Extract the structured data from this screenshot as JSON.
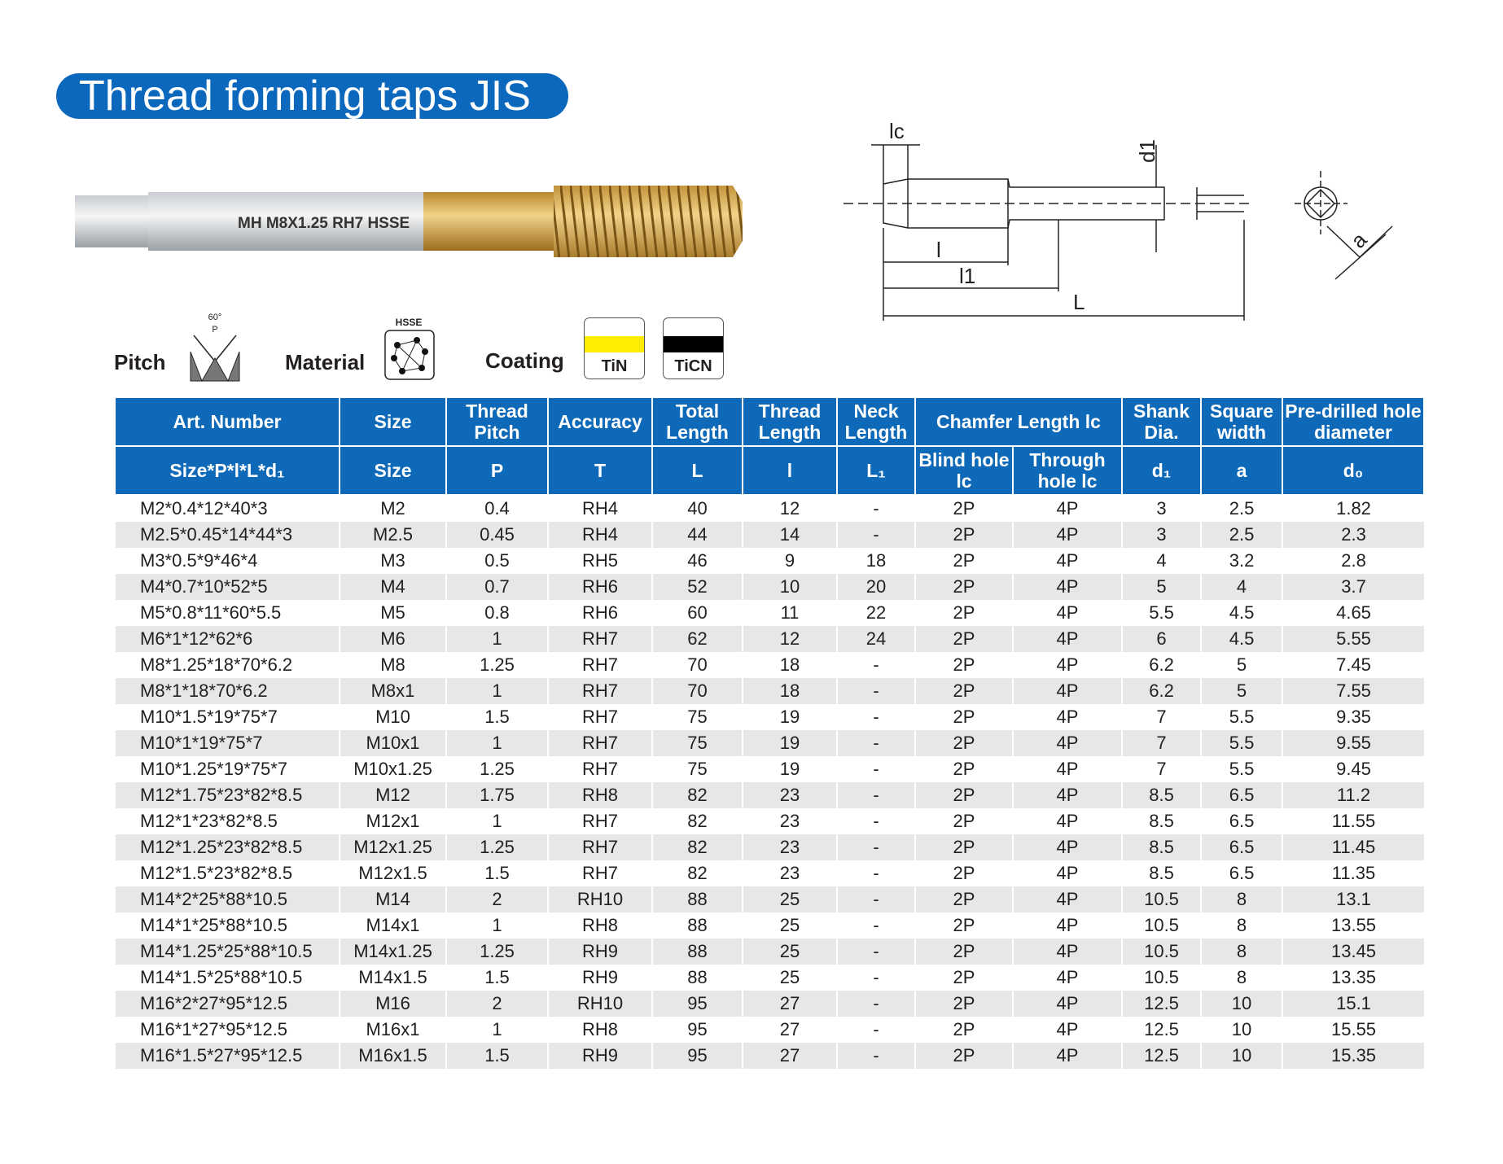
{
  "header": {
    "title": "Thread forming taps JIS"
  },
  "tool": {
    "marking": "MH M8X1.25 RH7 HSSE"
  },
  "diagram": {
    "labels": [
      "lc",
      "d1",
      "l",
      "l1",
      "L",
      "a"
    ]
  },
  "icons": {
    "pitch": {
      "label": "Pitch",
      "angle": "60°",
      "symbol": "P"
    },
    "material": {
      "label": "Material",
      "name": "HSSE"
    },
    "coating": {
      "label": "Coating",
      "options": [
        "TiN",
        "TiCN"
      ]
    }
  },
  "table": {
    "header1": [
      "Art. Number",
      "Size",
      "Thread Pitch",
      "Accuracy",
      "Total Length",
      "Thread Length",
      "Neck Length",
      "Chamfer Length lc",
      "Shank Dia.",
      "Square width",
      "Pre-drilled hole diameter"
    ],
    "header2": [
      "Size*P*l*L*d₁",
      "Size",
      "P",
      "T",
      "L",
      "l",
      "L₁",
      "Blind hole lc",
      "Through hole lc",
      "d₁",
      "a",
      "d₀"
    ],
    "rows": [
      [
        "M2*0.4*12*40*3",
        "M2",
        "0.4",
        "RH4",
        "40",
        "12",
        "-",
        "2P",
        "4P",
        "3",
        "2.5",
        "1.82"
      ],
      [
        "M2.5*0.45*14*44*3",
        "M2.5",
        "0.45",
        "RH4",
        "44",
        "14",
        "-",
        "2P",
        "4P",
        "3",
        "2.5",
        "2.3"
      ],
      [
        "M3*0.5*9*46*4",
        "M3",
        "0.5",
        "RH5",
        "46",
        "9",
        "18",
        "2P",
        "4P",
        "4",
        "3.2",
        "2.8"
      ],
      [
        "M4*0.7*10*52*5",
        "M4",
        "0.7",
        "RH6",
        "52",
        "10",
        "20",
        "2P",
        "4P",
        "5",
        "4",
        "3.7"
      ],
      [
        "M5*0.8*11*60*5.5",
        "M5",
        "0.8",
        "RH6",
        "60",
        "11",
        "22",
        "2P",
        "4P",
        "5.5",
        "4.5",
        "4.65"
      ],
      [
        "M6*1*12*62*6",
        "M6",
        "1",
        "RH7",
        "62",
        "12",
        "24",
        "2P",
        "4P",
        "6",
        "4.5",
        "5.55"
      ],
      [
        "M8*1.25*18*70*6.2",
        "M8",
        "1.25",
        "RH7",
        "70",
        "18",
        "-",
        "2P",
        "4P",
        "6.2",
        "5",
        "7.45"
      ],
      [
        "M8*1*18*70*6.2",
        "M8x1",
        "1",
        "RH7",
        "70",
        "18",
        "-",
        "2P",
        "4P",
        "6.2",
        "5",
        "7.55"
      ],
      [
        "M10*1.5*19*75*7",
        "M10",
        "1.5",
        "RH7",
        "75",
        "19",
        "-",
        "2P",
        "4P",
        "7",
        "5.5",
        "9.35"
      ],
      [
        "M10*1*19*75*7",
        "M10x1",
        "1",
        "RH7",
        "75",
        "19",
        "-",
        "2P",
        "4P",
        "7",
        "5.5",
        "9.55"
      ],
      [
        "M10*1.25*19*75*7",
        "M10x1.25",
        "1.25",
        "RH7",
        "75",
        "19",
        "-",
        "2P",
        "4P",
        "7",
        "5.5",
        "9.45"
      ],
      [
        "M12*1.75*23*82*8.5",
        "M12",
        "1.75",
        "RH8",
        "82",
        "23",
        "-",
        "2P",
        "4P",
        "8.5",
        "6.5",
        "11.2"
      ],
      [
        "M12*1*23*82*8.5",
        "M12x1",
        "1",
        "RH7",
        "82",
        "23",
        "-",
        "2P",
        "4P",
        "8.5",
        "6.5",
        "11.55"
      ],
      [
        "M12*1.25*23*82*8.5",
        "M12x1.25",
        "1.25",
        "RH7",
        "82",
        "23",
        "-",
        "2P",
        "4P",
        "8.5",
        "6.5",
        "11.45"
      ],
      [
        "M12*1.5*23*82*8.5",
        "M12x1.5",
        "1.5",
        "RH7",
        "82",
        "23",
        "-",
        "2P",
        "4P",
        "8.5",
        "6.5",
        "11.35"
      ],
      [
        "M14*2*25*88*10.5",
        "M14",
        "2",
        "RH10",
        "88",
        "25",
        "-",
        "2P",
        "4P",
        "10.5",
        "8",
        "13.1"
      ],
      [
        "M14*1*25*88*10.5",
        "M14x1",
        "1",
        "RH8",
        "88",
        "25",
        "-",
        "2P",
        "4P",
        "10.5",
        "8",
        "13.55"
      ],
      [
        "M14*1.25*25*88*10.5",
        "M14x1.25",
        "1.25",
        "RH9",
        "88",
        "25",
        "-",
        "2P",
        "4P",
        "10.5",
        "8",
        "13.45"
      ],
      [
        "M14*1.5*25*88*10.5",
        "M14x1.5",
        "1.5",
        "RH9",
        "88",
        "25",
        "-",
        "2P",
        "4P",
        "10.5",
        "8",
        "13.35"
      ],
      [
        "M16*2*27*95*12.5",
        "M16",
        "2",
        "RH10",
        "95",
        "27",
        "-",
        "2P",
        "4P",
        "12.5",
        "10",
        "15.1"
      ],
      [
        "M16*1*27*95*12.5",
        "M16x1",
        "1",
        "RH8",
        "95",
        "27",
        "-",
        "2P",
        "4P",
        "12.5",
        "10",
        "15.55"
      ],
      [
        "M16*1.5*27*95*12.5",
        "M16x1.5",
        "1.5",
        "RH9",
        "95",
        "27",
        "-",
        "2P",
        "4P",
        "12.5",
        "10",
        "15.35"
      ]
    ]
  }
}
